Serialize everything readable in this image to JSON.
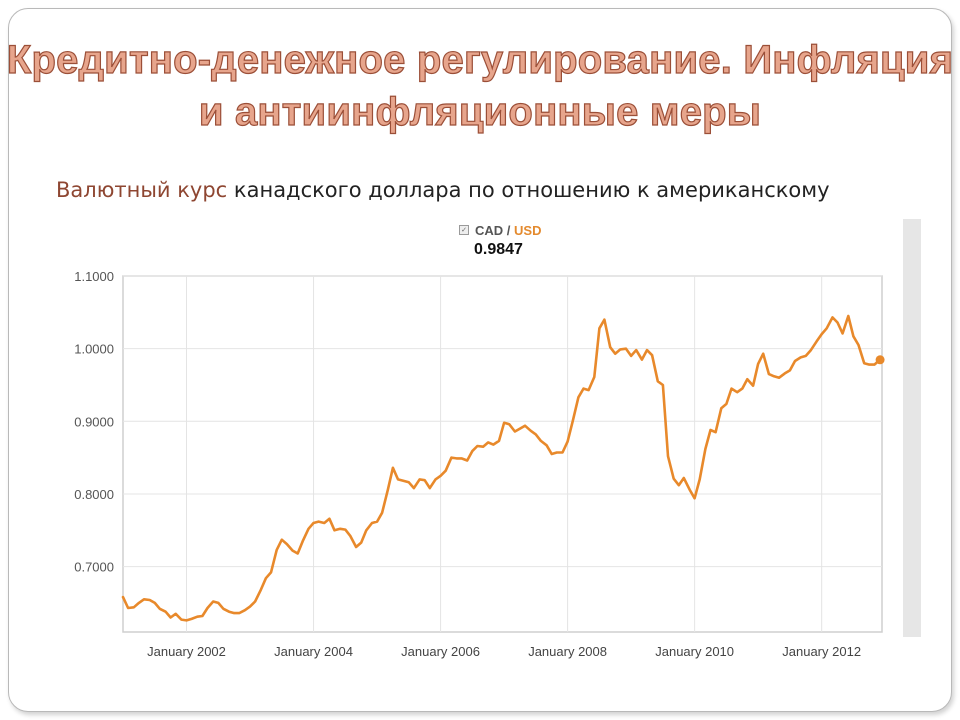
{
  "slide": {
    "title_line1": "Кредитно-денежное регулирование. Инфляция",
    "title_line2": "и антиинфляционные меры",
    "subtitle_accent": "Валютный курс",
    "subtitle_rest": " канадского доллара по отношению к американскому"
  },
  "legend": {
    "checkbox": "✓",
    "base": "CAD",
    "separator": " / ",
    "quote": "USD",
    "current_value": "0.9847"
  },
  "colors": {
    "line": "#e8892b",
    "grid": "#e4e4e4",
    "title_fill": "#e7a58c",
    "title_stroke": "#9b4f38"
  },
  "chart_data": {
    "type": "line",
    "series": [
      {
        "name": "CAD / USD",
        "points": [
          [
            2001.0,
            0.658
          ],
          [
            2001.08,
            0.643
          ],
          [
            2001.17,
            0.644
          ],
          [
            2001.25,
            0.65
          ],
          [
            2001.33,
            0.655
          ],
          [
            2001.42,
            0.654
          ],
          [
            2001.5,
            0.65
          ],
          [
            2001.58,
            0.642
          ],
          [
            2001.67,
            0.638
          ],
          [
            2001.75,
            0.63
          ],
          [
            2001.83,
            0.635
          ],
          [
            2001.92,
            0.627
          ],
          [
            2002.0,
            0.626
          ],
          [
            2002.08,
            0.628
          ],
          [
            2002.17,
            0.631
          ],
          [
            2002.25,
            0.632
          ],
          [
            2002.33,
            0.643
          ],
          [
            2002.42,
            0.652
          ],
          [
            2002.5,
            0.65
          ],
          [
            2002.58,
            0.642
          ],
          [
            2002.67,
            0.638
          ],
          [
            2002.75,
            0.636
          ],
          [
            2002.83,
            0.636
          ],
          [
            2002.92,
            0.64
          ],
          [
            2003.0,
            0.645
          ],
          [
            2003.08,
            0.652
          ],
          [
            2003.17,
            0.668
          ],
          [
            2003.25,
            0.684
          ],
          [
            2003.33,
            0.692
          ],
          [
            2003.42,
            0.723
          ],
          [
            2003.5,
            0.737
          ],
          [
            2003.58,
            0.731
          ],
          [
            2003.67,
            0.722
          ],
          [
            2003.75,
            0.718
          ],
          [
            2003.83,
            0.735
          ],
          [
            2003.92,
            0.752
          ],
          [
            2004.0,
            0.76
          ],
          [
            2004.08,
            0.762
          ],
          [
            2004.17,
            0.76
          ],
          [
            2004.25,
            0.766
          ],
          [
            2004.33,
            0.75
          ],
          [
            2004.42,
            0.752
          ],
          [
            2004.5,
            0.751
          ],
          [
            2004.58,
            0.742
          ],
          [
            2004.67,
            0.727
          ],
          [
            2004.75,
            0.733
          ],
          [
            2004.83,
            0.75
          ],
          [
            2004.92,
            0.76
          ],
          [
            2005.0,
            0.762
          ],
          [
            2005.08,
            0.774
          ],
          [
            2005.17,
            0.806
          ],
          [
            2005.25,
            0.836
          ],
          [
            2005.33,
            0.82
          ],
          [
            2005.42,
            0.818
          ],
          [
            2005.5,
            0.816
          ],
          [
            2005.58,
            0.808
          ],
          [
            2005.67,
            0.82
          ],
          [
            2005.75,
            0.819
          ],
          [
            2005.83,
            0.808
          ],
          [
            2005.92,
            0.82
          ],
          [
            2006.0,
            0.825
          ],
          [
            2006.08,
            0.832
          ],
          [
            2006.17,
            0.85
          ],
          [
            2006.25,
            0.849
          ],
          [
            2006.33,
            0.849
          ],
          [
            2006.42,
            0.846
          ],
          [
            2006.5,
            0.859
          ],
          [
            2006.58,
            0.866
          ],
          [
            2006.67,
            0.865
          ],
          [
            2006.75,
            0.871
          ],
          [
            2006.83,
            0.868
          ],
          [
            2006.92,
            0.873
          ],
          [
            2007.0,
            0.898
          ],
          [
            2007.08,
            0.896
          ],
          [
            2007.17,
            0.886
          ],
          [
            2007.25,
            0.89
          ],
          [
            2007.33,
            0.894
          ],
          [
            2007.42,
            0.887
          ],
          [
            2007.5,
            0.882
          ],
          [
            2007.58,
            0.873
          ],
          [
            2007.67,
            0.867
          ],
          [
            2007.75,
            0.855
          ],
          [
            2007.83,
            0.857
          ],
          [
            2007.92,
            0.857
          ],
          [
            2008.0,
            0.872
          ],
          [
            2008.08,
            0.9
          ],
          [
            2008.17,
            0.933
          ],
          [
            2008.25,
            0.945
          ],
          [
            2008.33,
            0.943
          ],
          [
            2008.42,
            0.961
          ],
          [
            2008.5,
            1.028
          ],
          [
            2008.58,
            1.04
          ],
          [
            2008.67,
            1.002
          ],
          [
            2008.75,
            0.993
          ],
          [
            2008.83,
            0.999
          ],
          [
            2008.92,
            1.0
          ],
          [
            2009.0,
            0.99
          ],
          [
            2009.08,
            0.998
          ],
          [
            2009.17,
            0.985
          ],
          [
            2009.25,
            0.998
          ],
          [
            2009.33,
            0.991
          ],
          [
            2009.42,
            0.955
          ],
          [
            2009.5,
            0.95
          ],
          [
            2009.58,
            0.852
          ],
          [
            2009.67,
            0.821
          ],
          [
            2009.75,
            0.812
          ],
          [
            2009.83,
            0.822
          ],
          [
            2009.92,
            0.806
          ],
          [
            2010.0,
            0.794
          ],
          [
            2010.08,
            0.82
          ],
          [
            2010.17,
            0.862
          ],
          [
            2010.25,
            0.888
          ],
          [
            2010.33,
            0.885
          ],
          [
            2010.42,
            0.918
          ],
          [
            2010.5,
            0.924
          ],
          [
            2010.58,
            0.945
          ],
          [
            2010.67,
            0.94
          ],
          [
            2010.75,
            0.945
          ],
          [
            2010.83,
            0.958
          ],
          [
            2010.92,
            0.949
          ],
          [
            2011.0,
            0.979
          ],
          [
            2011.08,
            0.993
          ],
          [
            2011.17,
            0.965
          ],
          [
            2011.25,
            0.962
          ],
          [
            2011.33,
            0.96
          ],
          [
            2011.42,
            0.966
          ],
          [
            2011.5,
            0.97
          ],
          [
            2011.58,
            0.983
          ],
          [
            2011.67,
            0.988
          ],
          [
            2011.75,
            0.99
          ],
          [
            2011.83,
            0.998
          ],
          [
            2011.92,
            1.01
          ],
          [
            2012.0,
            1.02
          ],
          [
            2012.08,
            1.028
          ],
          [
            2012.17,
            1.043
          ],
          [
            2012.25,
            1.036
          ],
          [
            2012.33,
            1.021
          ],
          [
            2012.42,
            1.045
          ],
          [
            2012.5,
            1.017
          ],
          [
            2012.58,
            1.005
          ],
          [
            2012.67,
            0.98
          ],
          [
            2012.75,
            0.978
          ],
          [
            2012.83,
            0.978
          ],
          [
            2012.92,
            0.985
          ]
        ],
        "last_point": [
          2012.92,
          0.9847
        ]
      }
    ],
    "yticks": [
      {
        "value": 0.7,
        "label": "0.7000"
      },
      {
        "value": 0.8,
        "label": "0.8000"
      },
      {
        "value": 0.9,
        "label": "0.9000"
      },
      {
        "value": 1.0,
        "label": "1.0000"
      },
      {
        "value": 1.1,
        "label": "1.1000"
      }
    ],
    "xticks": [
      {
        "value": 2002,
        "label": "January 2002"
      },
      {
        "value": 2004,
        "label": "January 2004"
      },
      {
        "value": 2006,
        "label": "January 2006"
      },
      {
        "value": 2008,
        "label": "January 2008"
      },
      {
        "value": 2010,
        "label": "January 2010"
      },
      {
        "value": 2012,
        "label": "January 2012"
      }
    ],
    "xlim": [
      2001.0,
      2012.95
    ],
    "ylim": [
      0.61,
      1.1
    ],
    "grid": true,
    "legend_position": "top-center"
  }
}
